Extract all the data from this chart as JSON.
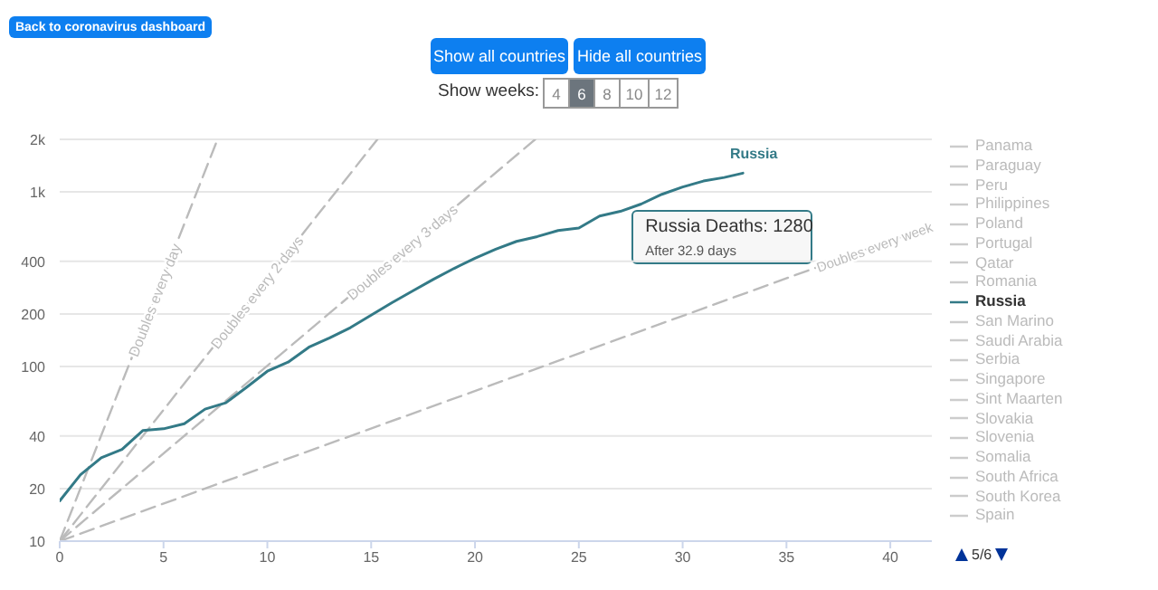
{
  "chart_data": {
    "type": "line",
    "x": [
      0,
      1,
      2,
      3,
      4,
      5,
      6,
      7,
      8,
      9,
      10,
      11,
      12,
      13,
      14,
      15,
      16,
      17,
      18,
      19,
      20,
      21,
      22,
      23,
      24,
      25,
      26,
      27,
      28,
      29,
      30,
      31,
      32,
      32.9
    ],
    "xlim": [
      0,
      42
    ],
    "xticks": [
      0,
      5,
      10,
      15,
      20,
      25,
      30,
      35,
      40
    ],
    "ylim": [
      10,
      2000
    ],
    "yticks": [
      10,
      20,
      40,
      100,
      200,
      400,
      {
        "value": 1000,
        "label": "1k"
      },
      {
        "value": 2000,
        "label": "2k"
      }
    ],
    "log": "y",
    "grid": "y",
    "legend": "right",
    "marker": "none",
    "series": [
      {
        "name": "Doubles every day",
        "color": "#bbbbbb",
        "line_style": "dashed",
        "x": [
          0,
          7.6
        ],
        "values": [
          10,
          2000
        ]
      },
      {
        "name": "Doubles every 2 days",
        "color": "#bbbbbb",
        "line_style": "dashed",
        "x": [
          0,
          15.3
        ],
        "values": [
          10,
          2000
        ]
      },
      {
        "name": "Doubles every 3 days",
        "color": "#bbbbbb",
        "line_style": "dashed",
        "x": [
          0,
          22.9
        ],
        "values": [
          10,
          2000
        ]
      },
      {
        "name": "Doubles every week",
        "color": "#bbbbbb",
        "line_style": "dashed",
        "x": [
          0,
          42
        ],
        "values": [
          10,
          640
        ]
      },
      {
        "name": "Panama",
        "color": "#cccccc",
        "values": [
          null,
          null,
          null,
          null,
          null,
          null,
          null,
          null,
          null,
          null,
          null,
          null,
          null,
          null,
          null,
          null,
          null,
          null,
          null,
          null,
          null,
          null,
          null,
          null,
          null,
          null,
          null,
          null,
          null,
          null,
          null,
          null,
          null,
          null
        ]
      },
      {
        "name": "Paraguay",
        "color": "#cccccc",
        "values": [
          null,
          null,
          null,
          null,
          null,
          null,
          null,
          null,
          null,
          null,
          null,
          null,
          null,
          null,
          null,
          null,
          null,
          null,
          null,
          null,
          null,
          null,
          null,
          null,
          null,
          null,
          null,
          null,
          null,
          null,
          null,
          null,
          null,
          null
        ]
      },
      {
        "name": "Peru",
        "color": "#cccccc",
        "values": [
          null,
          null,
          null,
          null,
          null,
          null,
          null,
          null,
          null,
          null,
          null,
          null,
          null,
          null,
          null,
          null,
          null,
          null,
          null,
          null,
          null,
          null,
          null,
          null,
          null,
          null,
          null,
          null,
          null,
          null,
          null,
          null,
          null,
          null
        ]
      },
      {
        "name": "Philippines",
        "color": "#cccccc",
        "values": [
          null,
          null,
          null,
          null,
          null,
          null,
          null,
          null,
          null,
          null,
          null,
          null,
          null,
          null,
          null,
          null,
          null,
          null,
          null,
          null,
          null,
          null,
          null,
          null,
          null,
          null,
          null,
          null,
          null,
          null,
          null,
          null,
          null,
          null
        ]
      },
      {
        "name": "Poland",
        "color": "#cccccc",
        "values": [
          null,
          null,
          null,
          null,
          null,
          null,
          null,
          null,
          null,
          null,
          null,
          null,
          null,
          null,
          null,
          null,
          null,
          null,
          null,
          null,
          null,
          null,
          null,
          null,
          null,
          null,
          null,
          null,
          null,
          null,
          null,
          null,
          null,
          null
        ]
      },
      {
        "name": "Portugal",
        "color": "#cccccc",
        "values": [
          null,
          null,
          null,
          null,
          null,
          null,
          null,
          null,
          null,
          null,
          null,
          null,
          null,
          null,
          null,
          null,
          null,
          null,
          null,
          null,
          null,
          null,
          null,
          null,
          null,
          null,
          null,
          null,
          null,
          null,
          null,
          null,
          null,
          null
        ]
      },
      {
        "name": "Qatar",
        "color": "#cccccc",
        "values": [
          null,
          null,
          null,
          null,
          null,
          null,
          null,
          null,
          null,
          null,
          null,
          null,
          null,
          null,
          null,
          null,
          null,
          null,
          null,
          null,
          null,
          null,
          null,
          null,
          null,
          null,
          null,
          null,
          null,
          null,
          null,
          null,
          null,
          null
        ]
      },
      {
        "name": "Romania",
        "color": "#cccccc",
        "values": [
          null,
          null,
          null,
          null,
          null,
          null,
          null,
          null,
          null,
          null,
          null,
          null,
          null,
          null,
          null,
          null,
          null,
          null,
          null,
          null,
          null,
          null,
          null,
          null,
          null,
          null,
          null,
          null,
          null,
          null,
          null,
          null,
          null,
          null
        ]
      },
      {
        "name": "Russia",
        "color": "#337a87",
        "line_style": "solid",
        "values": [
          17,
          24,
          30,
          33.5,
          43,
          44,
          47,
          57,
          62,
          76,
          94,
          106,
          129,
          146,
          167,
          197,
          232,
          271,
          316,
          365,
          417,
          470,
          521,
          555,
          601,
          621,
          728,
          774,
          852,
          969,
          1067,
          1154,
          1210,
          1280
        ]
      },
      {
        "name": "San Marino",
        "color": "#cccccc",
        "values": [
          null,
          null,
          null,
          null,
          null,
          null,
          null,
          null,
          null,
          null,
          null,
          null,
          null,
          null,
          null,
          null,
          null,
          null,
          null,
          null,
          null,
          null,
          null,
          null,
          null,
          null,
          null,
          null,
          null,
          null,
          null,
          null,
          null,
          null
        ]
      },
      {
        "name": "Saudi Arabia",
        "color": "#cccccc",
        "values": [
          null,
          null,
          null,
          null,
          null,
          null,
          null,
          null,
          null,
          null,
          null,
          null,
          null,
          null,
          null,
          null,
          null,
          null,
          null,
          null,
          null,
          null,
          null,
          null,
          null,
          null,
          null,
          null,
          null,
          null,
          null,
          null,
          null,
          null
        ]
      },
      {
        "name": "Serbia",
        "color": "#cccccc",
        "values": [
          null,
          null,
          null,
          null,
          null,
          null,
          null,
          null,
          null,
          null,
          null,
          null,
          null,
          null,
          null,
          null,
          null,
          null,
          null,
          null,
          null,
          null,
          null,
          null,
          null,
          null,
          null,
          null,
          null,
          null,
          null,
          null,
          null,
          null
        ]
      },
      {
        "name": "Singapore",
        "color": "#cccccc",
        "values": [
          null,
          null,
          null,
          null,
          null,
          null,
          null,
          null,
          null,
          null,
          null,
          null,
          null,
          null,
          null,
          null,
          null,
          null,
          null,
          null,
          null,
          null,
          null,
          null,
          null,
          null,
          null,
          null,
          null,
          null,
          null,
          null,
          null,
          null
        ]
      },
      {
        "name": "Sint Maarten",
        "color": "#cccccc",
        "values": [
          null,
          null,
          null,
          null,
          null,
          null,
          null,
          null,
          null,
          null,
          null,
          null,
          null,
          null,
          null,
          null,
          null,
          null,
          null,
          null,
          null,
          null,
          null,
          null,
          null,
          null,
          null,
          null,
          null,
          null,
          null,
          null,
          null,
          null
        ]
      },
      {
        "name": "Slovakia",
        "color": "#cccccc",
        "values": [
          null,
          null,
          null,
          null,
          null,
          null,
          null,
          null,
          null,
          null,
          null,
          null,
          null,
          null,
          null,
          null,
          null,
          null,
          null,
          null,
          null,
          null,
          null,
          null,
          null,
          null,
          null,
          null,
          null,
          null,
          null,
          null,
          null,
          null
        ]
      },
      {
        "name": "Slovenia",
        "color": "#cccccc",
        "values": [
          null,
          null,
          null,
          null,
          null,
          null,
          null,
          null,
          null,
          null,
          null,
          null,
          null,
          null,
          null,
          null,
          null,
          null,
          null,
          null,
          null,
          null,
          null,
          null,
          null,
          null,
          null,
          null,
          null,
          null,
          null,
          null,
          null,
          null
        ]
      },
      {
        "name": "Somalia",
        "color": "#cccccc",
        "values": [
          null,
          null,
          null,
          null,
          null,
          null,
          null,
          null,
          null,
          null,
          null,
          null,
          null,
          null,
          null,
          null,
          null,
          null,
          null,
          null,
          null,
          null,
          null,
          null,
          null,
          null,
          null,
          null,
          null,
          null,
          null,
          null,
          null,
          null
        ]
      },
      {
        "name": "South Africa",
        "color": "#cccccc",
        "values": [
          null,
          null,
          null,
          null,
          null,
          null,
          null,
          null,
          null,
          null,
          null,
          null,
          null,
          null,
          null,
          null,
          null,
          null,
          null,
          null,
          null,
          null,
          null,
          null,
          null,
          null,
          null,
          null,
          null,
          null,
          null,
          null,
          null,
          null
        ]
      },
      {
        "name": "South Korea",
        "color": "#cccccc",
        "values": [
          null,
          null,
          null,
          null,
          null,
          null,
          null,
          null,
          null,
          null,
          null,
          null,
          null,
          null,
          null,
          null,
          null,
          null,
          null,
          null,
          null,
          null,
          null,
          null,
          null,
          null,
          null,
          null,
          null,
          null,
          null,
          null,
          null,
          null
        ]
      },
      {
        "name": "Spain",
        "color": "#cccccc",
        "values": [
          null,
          null,
          null,
          null,
          null,
          null,
          null,
          null,
          null,
          null,
          null,
          null,
          null,
          null,
          null,
          null,
          null,
          null,
          null,
          null,
          null,
          null,
          null,
          null,
          null,
          null,
          null,
          null,
          null,
          null,
          null,
          null,
          null,
          null
        ]
      }
    ],
    "annotations": [
      "Back to coronavirus dashboard",
      "Show all countries",
      "Hide all countries",
      "Show weeks:",
      "4",
      "6",
      "8",
      "10",
      "12",
      "Russia Deaths: 1280",
      "After 32.9 days",
      "5/6"
    ]
  }
}
